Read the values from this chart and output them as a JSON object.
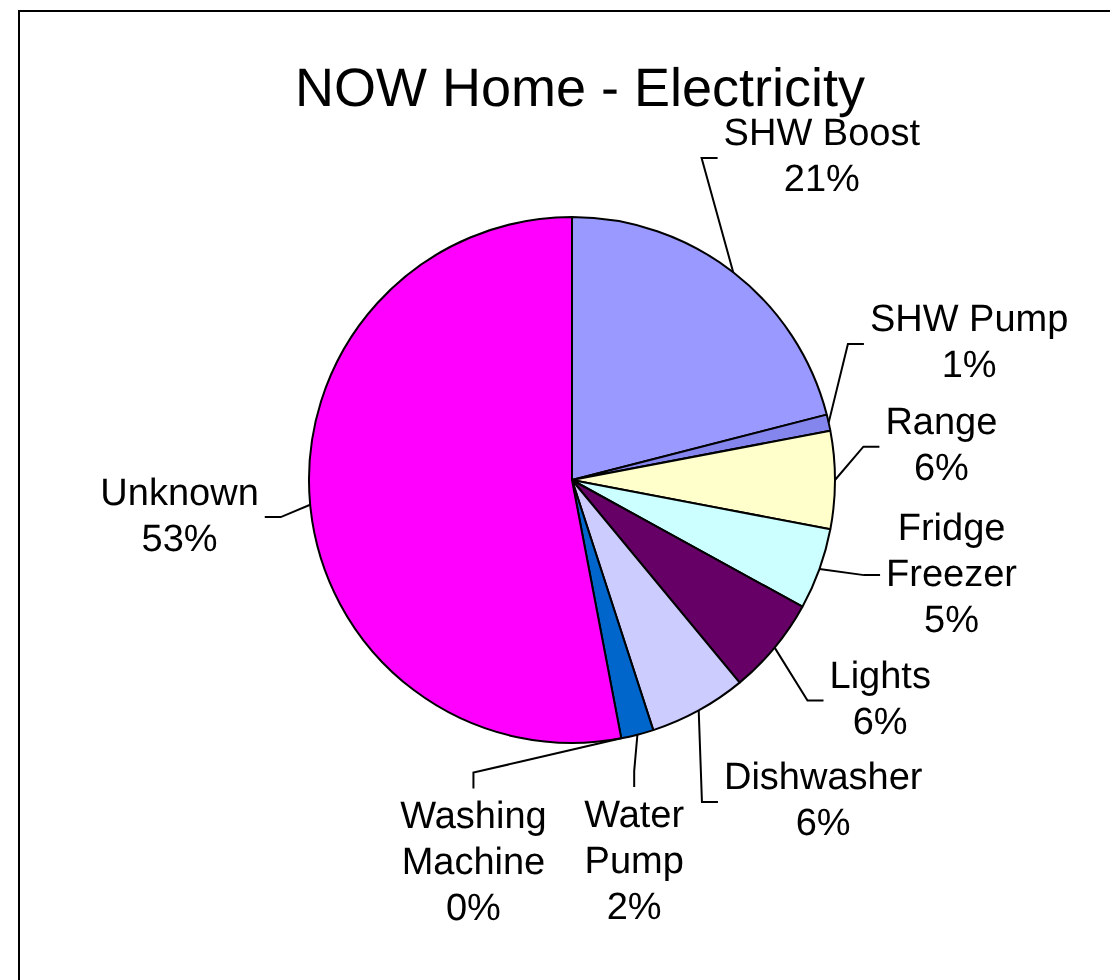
{
  "chart_data": {
    "type": "pie",
    "title": "NOW Home - Electricity",
    "categories": [
      "SHW Boost",
      "SHW Pump",
      "Range",
      "Fridge Freezer",
      "Lights",
      "Dishwasher",
      "Water Pump",
      "Washing Machine",
      "Unknown"
    ],
    "values": [
      21,
      1,
      6,
      5,
      6,
      6,
      2,
      0,
      53
    ],
    "colors": [
      "#9999ff",
      "#8585ee",
      "#ffffcc",
      "#ccffff",
      "#660066",
      "#ccccff",
      "#0066cc",
      "#000080",
      "#ff00ff"
    ],
    "value_labels": [
      "21%",
      "1%",
      "6%",
      "5%",
      "6%",
      "6%",
      "2%",
      "0%",
      "53%"
    ]
  }
}
